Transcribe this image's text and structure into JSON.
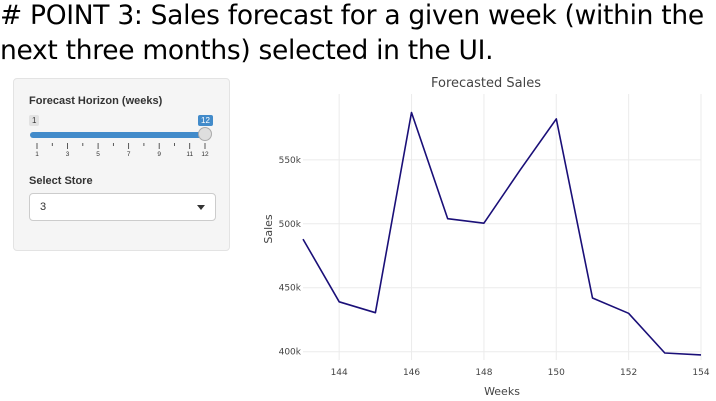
{
  "slide": {
    "title_line1": "# POINT 3: Sales forecast for a given week (within the",
    "title_line2": "next three months) selected in the UI."
  },
  "sidebar": {
    "horizon": {
      "label": "Forecast Horizon (weeks)",
      "min": 1,
      "max": 12,
      "value": 12,
      "min_label": "1",
      "value_label": "12",
      "tick_labels": [
        "1",
        "3",
        "5",
        "7",
        "9",
        "11",
        "12"
      ],
      "accent": "#428bca"
    },
    "store": {
      "label": "Select Store",
      "selected": "3"
    }
  },
  "chart_data": {
    "type": "line",
    "title": "Forecasted Sales",
    "xlabel": "Weeks",
    "ylabel": "Sales",
    "x": [
      143,
      144,
      145,
      146,
      147,
      148,
      149,
      150,
      151,
      152,
      153,
      154
    ],
    "values": [
      488000,
      439000,
      430500,
      587000,
      504000,
      500500,
      542000,
      582000,
      442000,
      430000,
      399000,
      397500
    ],
    "xlim": [
      143,
      154
    ],
    "ylim": [
      393500,
      601500
    ],
    "x_ticks": [
      144,
      146,
      148,
      150,
      152,
      154
    ],
    "y_ticks": [
      400000,
      450000,
      500000,
      550000
    ],
    "y_tick_labels": [
      "400k",
      "450k",
      "500k",
      "550k"
    ],
    "line_color": "#1a0f78",
    "grid": true
  }
}
